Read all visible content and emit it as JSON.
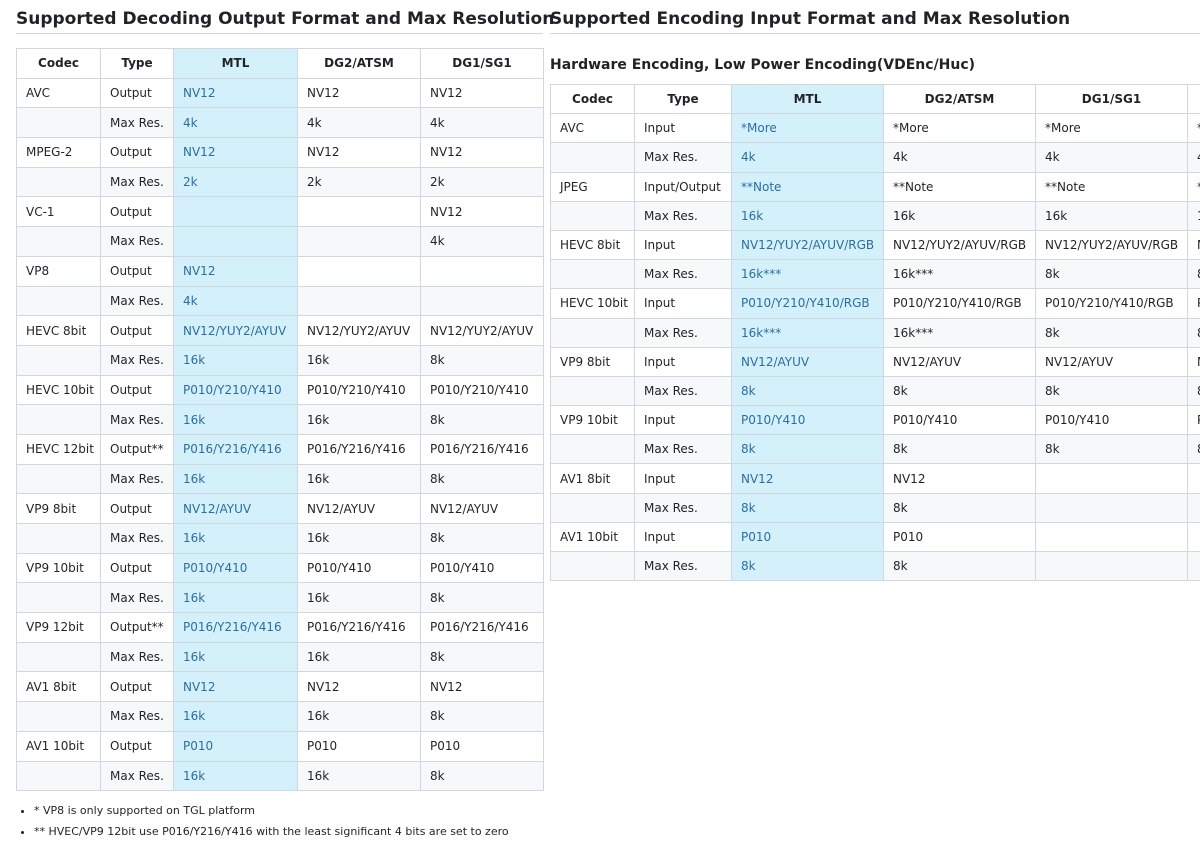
{
  "decoding": {
    "title": "Supported Decoding Output Format and Max Resolution",
    "headers": [
      "Codec",
      "Type",
      "MTL",
      "DG2/ATSM",
      "DG1/SG1"
    ],
    "rows": [
      [
        "AVC",
        "Output",
        "NV12",
        "NV12",
        "NV12"
      ],
      [
        "",
        "Max Res.",
        "4k",
        "4k",
        "4k"
      ],
      [
        "MPEG-2",
        "Output",
        "NV12",
        "NV12",
        "NV12"
      ],
      [
        "",
        "Max Res.",
        "2k",
        "2k",
        "2k"
      ],
      [
        "VC-1",
        "Output",
        "",
        "",
        "NV12"
      ],
      [
        "",
        "Max Res.",
        "",
        "",
        "4k"
      ],
      [
        "VP8",
        "Output",
        "NV12",
        "",
        ""
      ],
      [
        "",
        "Max Res.",
        "4k",
        "",
        ""
      ],
      [
        "HEVC 8bit",
        "Output",
        "NV12/YUY2/AYUV",
        "NV12/YUY2/AYUV",
        "NV12/YUY2/AYUV"
      ],
      [
        "",
        "Max Res.",
        "16k",
        "16k",
        "8k"
      ],
      [
        "HEVC 10bit",
        "Output",
        "P010/Y210/Y410",
        "P010/Y210/Y410",
        "P010/Y210/Y410"
      ],
      [
        "",
        "Max Res.",
        "16k",
        "16k",
        "8k"
      ],
      [
        "HEVC 12bit",
        "Output**",
        "P016/Y216/Y416",
        "P016/Y216/Y416",
        "P016/Y216/Y416"
      ],
      [
        "",
        "Max Res.",
        "16k",
        "16k",
        "8k"
      ],
      [
        "VP9 8bit",
        "Output",
        "NV12/AYUV",
        "NV12/AYUV",
        "NV12/AYUV"
      ],
      [
        "",
        "Max Res.",
        "16k",
        "16k",
        "8k"
      ],
      [
        "VP9 10bit",
        "Output",
        "P010/Y410",
        "P010/Y410",
        "P010/Y410"
      ],
      [
        "",
        "Max Res.",
        "16k",
        "16k",
        "8k"
      ],
      [
        "VP9 12bit",
        "Output**",
        "P016/Y216/Y416",
        "P016/Y216/Y416",
        "P016/Y216/Y416"
      ],
      [
        "",
        "Max Res.",
        "16k",
        "16k",
        "8k"
      ],
      [
        "AV1 8bit",
        "Output",
        "NV12",
        "NV12",
        "NV12"
      ],
      [
        "",
        "Max Res.",
        "16k",
        "16k",
        "8k"
      ],
      [
        "AV1 10bit",
        "Output",
        "P010",
        "P010",
        "P010"
      ],
      [
        "",
        "Max Res.",
        "16k",
        "16k",
        "8k"
      ]
    ],
    "notes": [
      "* VP8 is only supported on TGL platform",
      "** HVEC/VP9 12bit use P016/Y216/Y416 with the least significant 4 bits are set to zero"
    ]
  },
  "encoding": {
    "title": "Supported Encoding Input Format and Max Resolution",
    "subtitle": "Hardware Encoding, Low Power Encoding(VDEnc/Huc)",
    "headers": [
      "Codec",
      "Type",
      "MTL",
      "DG2/ATSM",
      "DG1/SG1",
      ""
    ],
    "rows": [
      [
        "AVC",
        "Input",
        "*More",
        "*More",
        "*More",
        "*"
      ],
      [
        "",
        "Max Res.",
        "4k",
        "4k",
        "4k",
        "4"
      ],
      [
        "JPEG",
        "Input/Output",
        "**Note",
        "**Note",
        "**Note",
        "*"
      ],
      [
        "",
        "Max Res.",
        "16k",
        "16k",
        "16k",
        "1"
      ],
      [
        "HEVC 8bit",
        "Input",
        "NV12/YUY2/AYUV/RGB",
        "NV12/YUY2/AYUV/RGB",
        "NV12/YUY2/AYUV/RGB",
        "N"
      ],
      [
        "",
        "Max Res.",
        "16k***",
        "16k***",
        "8k",
        "8"
      ],
      [
        "HEVC 10bit",
        "Input",
        "P010/Y210/Y410/RGB",
        "P010/Y210/Y410/RGB",
        "P010/Y210/Y410/RGB",
        "P"
      ],
      [
        "",
        "Max Res.",
        "16k***",
        "16k***",
        "8k",
        "8"
      ],
      [
        "VP9 8bit",
        "Input",
        "NV12/AYUV",
        "NV12/AYUV",
        "NV12/AYUV",
        "N"
      ],
      [
        "",
        "Max Res.",
        "8k",
        "8k",
        "8k",
        "8"
      ],
      [
        "VP9 10bit",
        "Input",
        "P010/Y410",
        "P010/Y410",
        "P010/Y410",
        "P"
      ],
      [
        "",
        "Max Res.",
        "8k",
        "8k",
        "8k",
        "8"
      ],
      [
        "AV1 8bit",
        "Input",
        "NV12",
        "NV12",
        "",
        ""
      ],
      [
        "",
        "Max Res.",
        "8k",
        "8k",
        "",
        ""
      ],
      [
        "AV1 10bit",
        "Input",
        "P010",
        "P010",
        "",
        ""
      ],
      [
        "",
        "Max Res.",
        "8k",
        "8k",
        "",
        ""
      ]
    ]
  },
  "colors": {
    "highlight_column": "#d4f1fb",
    "highlight_text": "#2b6ea0",
    "border": "#d0d7de",
    "stripe": "#f6f8fa"
  }
}
